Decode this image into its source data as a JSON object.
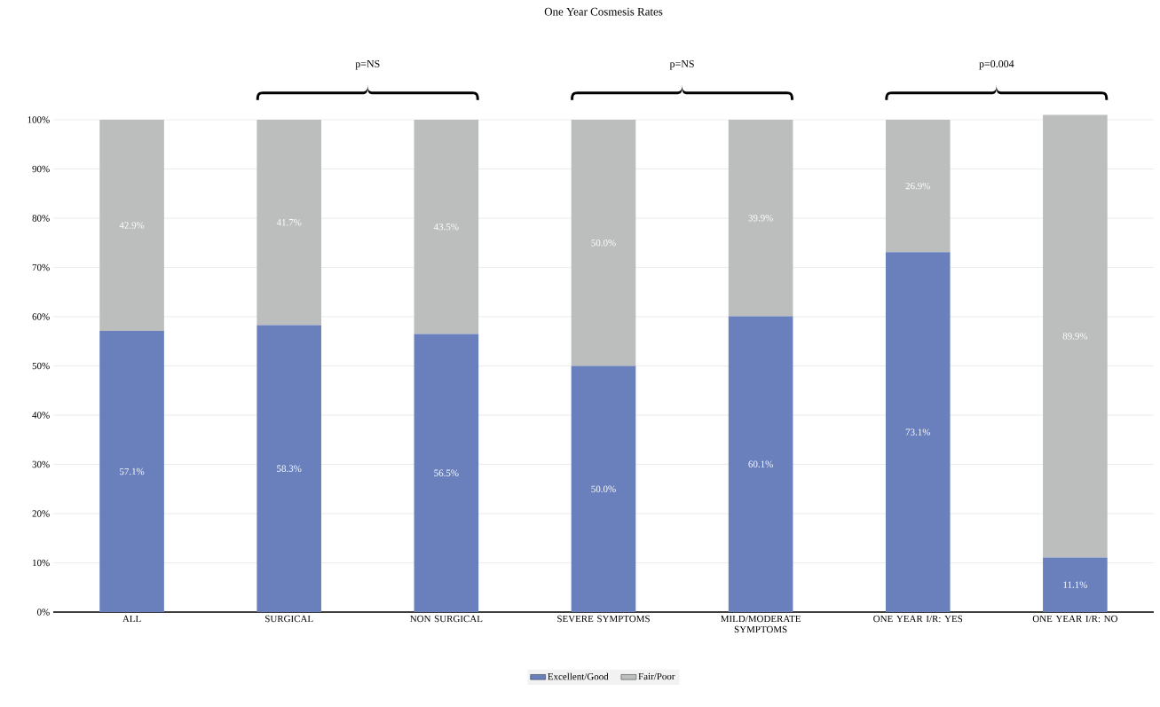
{
  "chart_data": {
    "type": "bar",
    "stacked": true,
    "title": "One Year Cosmesis Rates",
    "categories": [
      "ALL",
      "SURGICAL",
      "NON SURGICAL",
      "SEVERE SYMPTOMS",
      "MILD/MODERATE SYMPTOMS",
      "ONE YEAR I/R: YES",
      "ONE YEAR I/R: NO"
    ],
    "series": [
      {
        "name": "Excellent/Good",
        "color": "#6a80bd",
        "values": [
          57.1,
          58.3,
          56.5,
          50.0,
          60.1,
          73.1,
          11.1
        ],
        "value_labels": [
          "57.1%",
          "58.3%",
          "56.5%",
          "50.0%",
          "60.1%",
          "73.1%",
          "11.1%"
        ]
      },
      {
        "name": "Fair/Poor",
        "color": "#bcbdbd",
        "values": [
          42.9,
          41.7,
          43.5,
          50.0,
          39.9,
          26.9,
          89.9
        ],
        "value_labels": [
          "42.9%",
          "41.7%",
          "43.5%",
          "50.0%",
          "39.9%",
          "26.9%",
          "89.9%"
        ]
      }
    ],
    "ylim": [
      0,
      101
    ],
    "yticks": [
      {
        "value": 0,
        "label": "0%"
      },
      {
        "value": 10,
        "label": "10%"
      },
      {
        "value": 20,
        "label": "20%"
      },
      {
        "value": 30,
        "label": "30%"
      },
      {
        "value": 40,
        "label": "40%"
      },
      {
        "value": 50,
        "label": "50%"
      },
      {
        "value": 60,
        "label": "60%"
      },
      {
        "value": 70,
        "label": "70%"
      },
      {
        "value": 80,
        "label": "80%"
      },
      {
        "value": 90,
        "label": "90%"
      },
      {
        "value": 100,
        "label": "100%"
      }
    ],
    "grid": "y",
    "legend": "bottom",
    "annotations": [
      "p=NS",
      "p=NS",
      "p=0.004"
    ]
  }
}
